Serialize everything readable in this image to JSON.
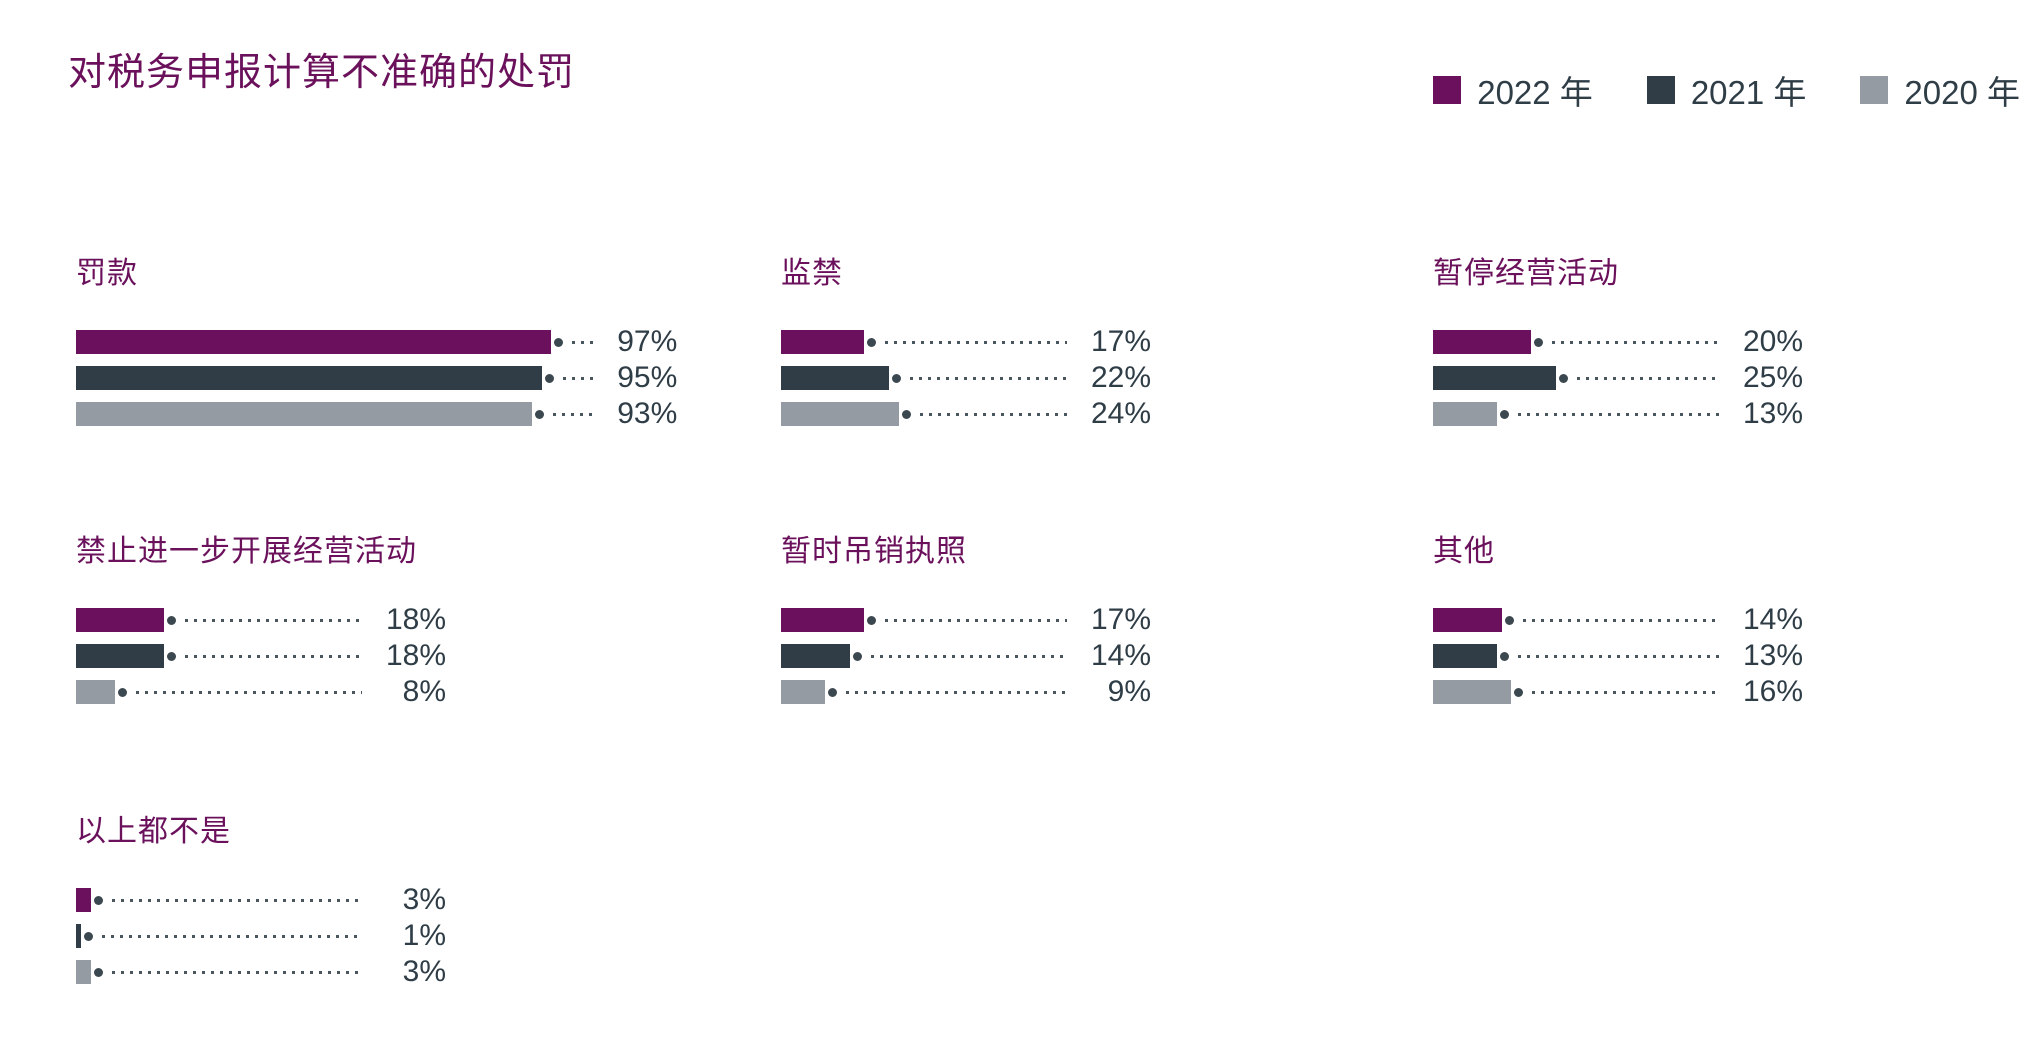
{
  "header": {
    "title": "对税务申报计算不准确的处罚",
    "title_color": "#6B115C"
  },
  "legend": {
    "items": [
      {
        "label": "2022 年",
        "color": "#6B105C"
      },
      {
        "label": "2021 年",
        "color": "#303D47"
      },
      {
        "label": "2020 年",
        "color": "#949BA2"
      }
    ]
  },
  "chart_data": {
    "type": "bar",
    "orientation": "horizontal",
    "title": "对税务申报计算不准确的处罚",
    "categories": [
      "罚款",
      "监禁",
      "暂停经营活动",
      "禁止进一步开展经营活动",
      "暂时吊销执照",
      "其他",
      "以上都不是"
    ],
    "series": [
      {
        "name": "2022 年",
        "color": "#6B105C",
        "values": [
          97,
          17,
          20,
          18,
          17,
          14,
          3
        ]
      },
      {
        "name": "2021 年",
        "color": "#303D47",
        "values": [
          95,
          22,
          25,
          18,
          14,
          13,
          1
        ]
      },
      {
        "name": "2020 年",
        "color": "#949BA2",
        "values": [
          93,
          24,
          13,
          8,
          9,
          16,
          3
        ]
      }
    ],
    "value_suffix": "%",
    "xlim": [
      0,
      100
    ],
    "grid": false,
    "legend_position": "top-right",
    "value_labels": "end-of-bar-with-dotted-leader"
  },
  "colors": {
    "value_text": "#2F3D47",
    "leader_dots": "#4A565E",
    "background": "#FFFFFF"
  }
}
